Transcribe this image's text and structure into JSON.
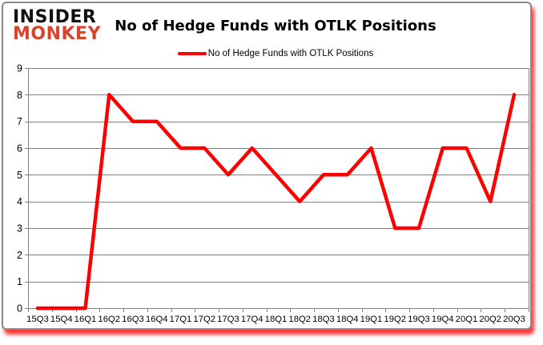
{
  "logo": {
    "line1": "INSIDER",
    "line2": "MONKEY",
    "insider_color": "#111111",
    "monkey_color": "#d9432b"
  },
  "header": {
    "title": "No of Hedge Funds with OTLK Positions"
  },
  "legend": {
    "label": "No of Hedge Funds with OTLK Positions",
    "swatch_color": "#ff0000"
  },
  "chart_data": {
    "type": "line",
    "title": "No of Hedge Funds with OTLK Positions",
    "categories": [
      "15Q3",
      "15Q4",
      "16Q1",
      "16Q2",
      "16Q3",
      "16Q4",
      "17Q1",
      "17Q2",
      "17Q3",
      "17Q4",
      "18Q1",
      "18Q2",
      "18Q3",
      "18Q4",
      "19Q1",
      "19Q2",
      "19Q3",
      "19Q4",
      "20Q1",
      "20Q2",
      "20Q3"
    ],
    "series": [
      {
        "name": "No of Hedge Funds with OTLK Positions",
        "values": [
          0,
          0,
          0,
          8,
          7,
          7,
          6,
          6,
          5,
          6,
          5,
          4,
          5,
          5,
          6,
          3,
          3,
          6,
          6,
          4,
          8
        ],
        "color": "#ff0000"
      }
    ],
    "xlabel": "",
    "ylabel": "",
    "ylim": [
      0,
      9
    ],
    "ytick_step": 1,
    "grid": true,
    "legend_position": "top",
    "gridline_color": "#808080",
    "axis_color": "#808080",
    "tick_label_color": "#000000"
  }
}
